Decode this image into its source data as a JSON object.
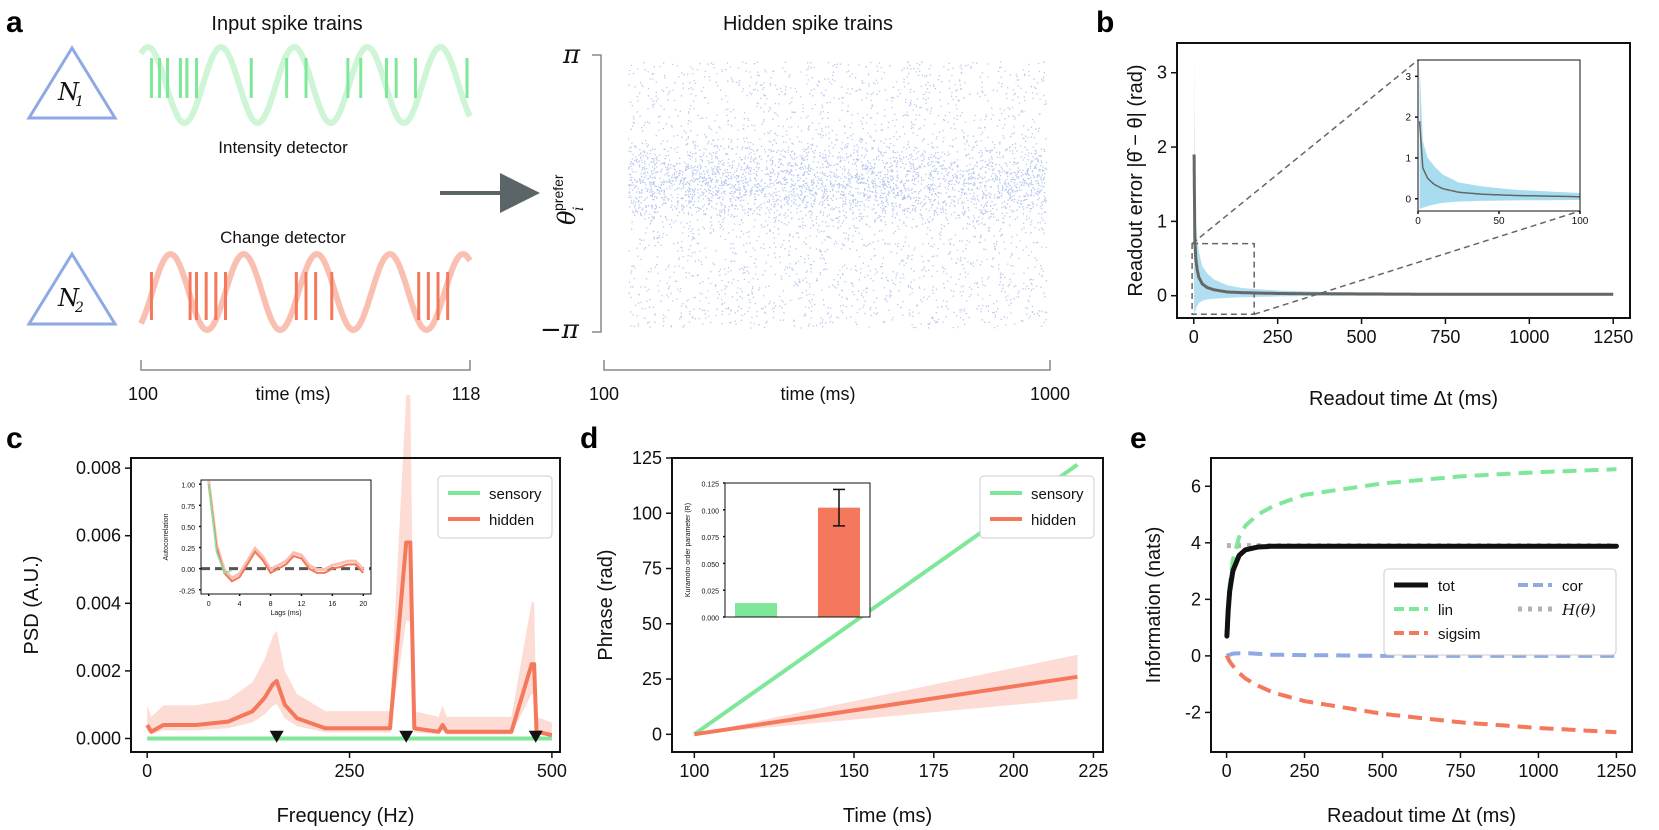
{
  "panel_labels": {
    "a": "a",
    "b": "b",
    "c": "c",
    "d": "d",
    "e": "e"
  },
  "colors": {
    "sensory": "#7fe79a",
    "sensory_light": "#cdf5d6",
    "hidden": "#f4785b",
    "hidden_light": "#f9c0b2",
    "node_outline": "#8fa9e3",
    "raster": "#b9c9ee",
    "mean": "#666666",
    "band_b": "#a8dcef",
    "arrow": "#5b6466",
    "cor": "#8fa9e3",
    "entropy": "#b3b3b3"
  },
  "panel_a": {
    "title_input": "Input spike trains",
    "title_hidden": "Hidden spike trains",
    "intensity_label": "Intensity detector",
    "change_label": "Change detector",
    "node1": "N",
    "node1_sub": "1",
    "node2": "N",
    "node2_sub": "2",
    "input_time_start": "100",
    "input_time_end": "118",
    "input_time_label": "time (ms)",
    "hidden_time_start": "100",
    "hidden_time_end": "1000",
    "hidden_time_label": "time (ms)",
    "ylabel_main": "θ",
    "ylabel_sub": "i",
    "ylabel_sup": "prefer",
    "ytop": "π",
    "ybottom": "−π",
    "spikes_intensity": [
      0.02,
      0.045,
      0.07,
      0.11,
      0.13,
      0.16,
      0.33,
      0.44,
      0.5,
      0.63,
      0.67,
      0.75,
      0.78,
      0.84,
      1.0
    ],
    "spikes_change": [
      0.02,
      0.14,
      0.16,
      0.19,
      0.22,
      0.25,
      0.47,
      0.5,
      0.53,
      0.58,
      0.85,
      0.88,
      0.91,
      0.94
    ]
  },
  "chart_data": [
    {
      "panel": "b",
      "type": "line",
      "xlabel": "Readout time Δt (ms)",
      "ylabel": "Readout error |θ̂ − θ| (rad)",
      "xlim": [
        -50,
        1300
      ],
      "ylim": [
        -0.3,
        3.4
      ],
      "xticks": [
        0,
        250,
        500,
        750,
        1000,
        1250
      ],
      "yticks": [
        0,
        1,
        2,
        3
      ],
      "series": [
        {
          "x": [
            1,
            3,
            6,
            10,
            15,
            25,
            40,
            60,
            100,
            150,
            250,
            400,
            700,
            1000,
            1250
          ],
          "mean": [
            1.9,
            0.75,
            0.5,
            0.35,
            0.25,
            0.16,
            0.11,
            0.08,
            0.05,
            0.04,
            0.03,
            0.025,
            0.02,
            0.02,
            0.02
          ],
          "lower": [
            -0.25,
            -0.22,
            -0.18,
            -0.14,
            -0.1,
            -0.07,
            -0.05,
            -0.04,
            -0.03,
            -0.02,
            -0.01,
            0.0,
            0.0,
            0.0,
            0.0
          ],
          "upper": [
            3.25,
            1.4,
            1.0,
            0.8,
            0.6,
            0.4,
            0.3,
            0.22,
            0.14,
            0.1,
            0.07,
            0.05,
            0.04,
            0.03,
            0.03
          ]
        }
      ],
      "inset": {
        "xlim": [
          0,
          100
        ],
        "ylim": [
          -0.3,
          3.4
        ],
        "xticks": [
          0,
          50,
          100
        ],
        "yticks": [
          0,
          1,
          2,
          3
        ]
      }
    },
    {
      "panel": "c",
      "type": "line",
      "xlabel": "Frequency (Hz)",
      "ylabel": "PSD (A.U.)",
      "xlim": [
        -20,
        510
      ],
      "ylim": [
        -0.0004,
        0.0083
      ],
      "xticks": [
        0,
        250,
        500
      ],
      "yticks": [
        0.0,
        0.002,
        0.004,
        0.006,
        0.008
      ],
      "ytick_labels": [
        "0.000",
        "0.002",
        "0.004",
        "0.006",
        "0.008"
      ],
      "legend": [
        "sensory",
        "hidden"
      ],
      "series": [
        {
          "name": "sensory",
          "x": [
            0,
            500
          ],
          "y": [
            0.0,
            0.0
          ]
        },
        {
          "name": "hidden",
          "x": [
            0,
            5,
            20,
            60,
            100,
            130,
            145,
            155,
            160,
            170,
            185,
            220,
            300,
            320,
            325,
            330,
            360,
            365,
            370,
            450,
            475,
            478,
            481,
            500
          ],
          "y": [
            0.0004,
            0.0002,
            0.0004,
            0.0004,
            0.0005,
            0.0008,
            0.0012,
            0.0016,
            0.0017,
            0.001,
            0.0006,
            0.0003,
            0.0003,
            0.0058,
            0.0058,
            0.0003,
            0.0002,
            0.0004,
            0.0002,
            0.0002,
            0.0022,
            0.0022,
            0.0002,
            0.0001
          ]
        }
      ],
      "markers_x": [
        160,
        320,
        480
      ],
      "inset": {
        "xlabel": "Lags (ms)",
        "ylabel": "Autocorrelation",
        "xticks": [
          0,
          4,
          8,
          12,
          16,
          20
        ],
        "yticks": [
          -0.25,
          0.0,
          0.25,
          0.5,
          0.75,
          1.0
        ],
        "ytick_labels": [
          "-0.25",
          "0.00",
          "0.25",
          "0.50",
          "0.75",
          "1.00"
        ],
        "x": [
          0,
          1,
          2,
          3,
          4,
          5,
          6,
          7,
          8,
          9,
          10,
          11,
          12,
          13,
          14,
          15,
          16,
          17,
          18,
          19,
          20
        ],
        "y": [
          1.0,
          0.25,
          -0.05,
          -0.15,
          -0.1,
          0.05,
          0.2,
          0.1,
          -0.05,
          0.0,
          0.05,
          0.15,
          0.12,
          0.0,
          -0.05,
          -0.05,
          0.0,
          0.02,
          0.05,
          0.05,
          -0.05
        ]
      }
    },
    {
      "panel": "d",
      "type": "line",
      "xlabel": "Time (ms)",
      "ylabel": "Phrase (rad)",
      "xlim": [
        93,
        228
      ],
      "ylim": [
        -8,
        125
      ],
      "xticks": [
        100,
        125,
        150,
        175,
        200,
        225
      ],
      "yticks": [
        0,
        25,
        50,
        75,
        100,
        125
      ],
      "legend": [
        "sensory",
        "hidden"
      ],
      "series": [
        {
          "name": "sensory",
          "x": [
            100,
            220
          ],
          "y": [
            0,
            122
          ]
        },
        {
          "name": "hidden",
          "x": [
            100,
            220
          ],
          "y": [
            0,
            26
          ],
          "lower": [
            0,
            16
          ],
          "upper": [
            0,
            36
          ]
        }
      ],
      "inset": {
        "type": "bar",
        "ylabel": "Kuramoto order parameter (R)",
        "categories": [
          "sensory",
          "hidden"
        ],
        "values": [
          0.013,
          0.102
        ],
        "error": [
          0,
          0.017
        ],
        "ylim": [
          0,
          0.125
        ],
        "yticks": [
          0.0,
          0.025,
          0.05,
          0.075,
          0.1,
          0.125
        ],
        "ytick_labels": [
          "0.000",
          "0.025",
          "0.050",
          "0.075",
          "0.100",
          "0.125"
        ]
      }
    },
    {
      "panel": "e",
      "type": "line",
      "xlabel": "Readout time Δt (ms)",
      "ylabel": "Information (nats)",
      "xlim": [
        -50,
        1300
      ],
      "ylim": [
        -3.4,
        7.0
      ],
      "xticks": [
        0,
        250,
        500,
        750,
        1000,
        1250
      ],
      "yticks": [
        -2,
        0,
        2,
        4,
        6
      ],
      "legend": [
        "tot",
        "lin",
        "sigsim",
        "cor",
        "H(θ)"
      ],
      "series": [
        {
          "name": "tot",
          "x": [
            1,
            5,
            10,
            20,
            40,
            60,
            100,
            150,
            1250
          ],
          "y": [
            0.7,
            1.6,
            2.3,
            3.0,
            3.55,
            3.75,
            3.85,
            3.88,
            3.88
          ]
        },
        {
          "name": "lin",
          "x": [
            1,
            5,
            10,
            20,
            40,
            60,
            100,
            150,
            250,
            500,
            750,
            1000,
            1250
          ],
          "y": [
            0.7,
            1.7,
            2.5,
            3.4,
            4.2,
            4.6,
            5.0,
            5.3,
            5.7,
            6.1,
            6.35,
            6.5,
            6.6
          ]
        },
        {
          "name": "sigsim",
          "x": [
            1,
            5,
            10,
            20,
            40,
            60,
            100,
            150,
            250,
            500,
            750,
            1000,
            1250
          ],
          "y": [
            0.0,
            -0.1,
            -0.2,
            -0.35,
            -0.6,
            -0.8,
            -1.05,
            -1.3,
            -1.6,
            -2.05,
            -2.35,
            -2.55,
            -2.7
          ]
        },
        {
          "name": "cor",
          "x": [
            1,
            20,
            60,
            150,
            500,
            1250
          ],
          "y": [
            0.0,
            0.08,
            0.1,
            0.04,
            0.0,
            0.0
          ]
        },
        {
          "name": "H(θ)",
          "x": [
            1,
            1250
          ],
          "y": [
            3.9,
            3.9
          ]
        }
      ]
    }
  ]
}
